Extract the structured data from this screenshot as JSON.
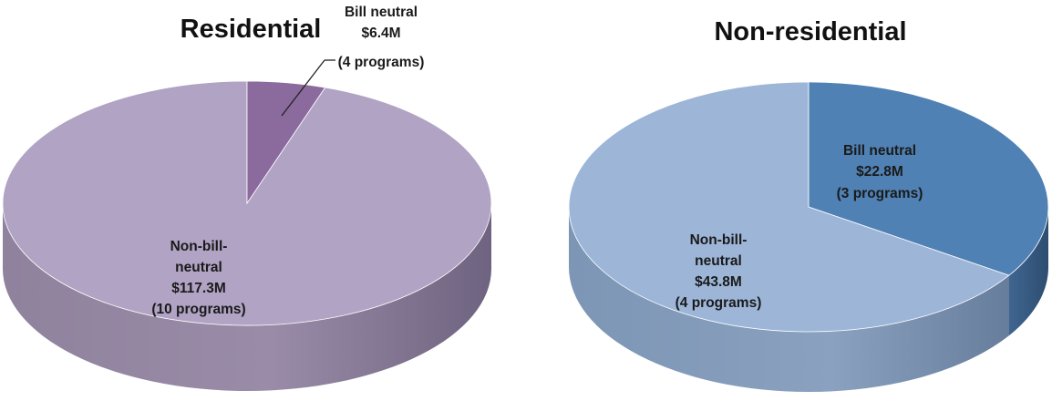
{
  "chart_data": [
    {
      "type": "pie",
      "title": "Residential",
      "slices": [
        {
          "label": "Bill neutral",
          "value": 6.4,
          "value_text": "$6.4M",
          "count_text": "(4 programs)",
          "color": "#8b6a9e"
        },
        {
          "label": "Non-bill-neutral",
          "label_lines": [
            "Non-bill-",
            "neutral"
          ],
          "value": 117.3,
          "value_text": "$117.3M",
          "count_text": "(10 programs)",
          "color": "#b1a3c4"
        }
      ]
    },
    {
      "type": "pie",
      "title": "Non-residential",
      "slices": [
        {
          "label": "Bill neutral",
          "value": 22.8,
          "value_text": "$22.8M",
          "count_text": "(3 programs)",
          "color": "#4f81b4"
        },
        {
          "label": "Non-bill-neutral",
          "label_lines": [
            "Non-bill-",
            "neutral"
          ],
          "value": 43.8,
          "value_text": "$43.8M",
          "count_text": "(4 programs)",
          "color": "#9db6d8"
        }
      ]
    }
  ]
}
